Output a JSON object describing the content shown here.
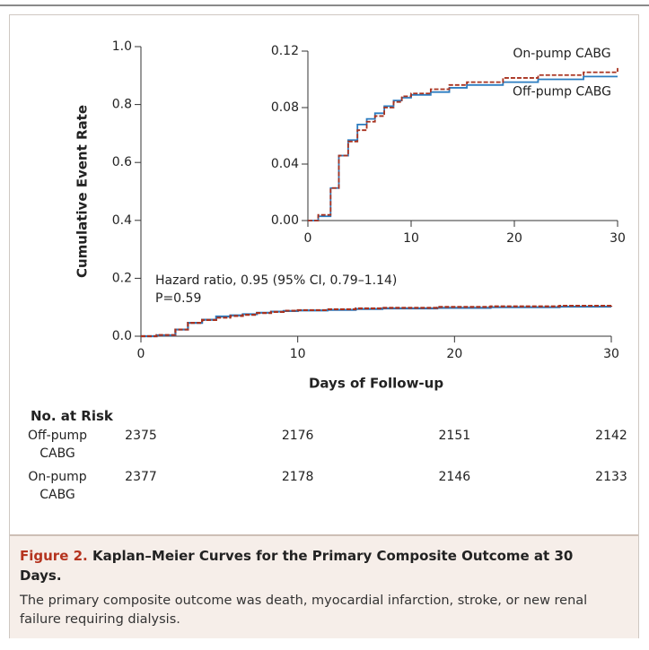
{
  "chart_data": [
    {
      "type": "step-line",
      "xlabel": "Days of Follow-up",
      "ylabel": "Cumulative Event Rate",
      "xlim": [
        0,
        30
      ],
      "ylim": [
        0,
        1
      ],
      "xticks": [
        0,
        10,
        20,
        30
      ],
      "yticks": [
        {
          "value": 0,
          "label": "0.0"
        },
        0.2,
        0.4,
        0.6,
        0.8,
        {
          "value": 1,
          "label": "1.0"
        }
      ],
      "annotations": [
        "Hazard ratio, 0.95 (95% CI, 0.79–1.14)",
        "P=0.59"
      ],
      "series": [
        {
          "name": "Off-pump CABG",
          "color": "#2b7cc0",
          "line_style": "solid",
          "x": [
            0,
            1,
            2.2,
            3,
            3.9,
            4.8,
            5.7,
            6.5,
            7.4,
            8.3,
            9.1,
            10,
            11.9,
            13.7,
            15.4,
            18.9,
            22.3,
            26.7,
            30
          ],
          "values": [
            0,
            0.003,
            0.023,
            0.046,
            0.057,
            0.068,
            0.072,
            0.076,
            0.081,
            0.085,
            0.087,
            0.089,
            0.091,
            0.094,
            0.096,
            0.098,
            0.1,
            0.102,
            0.102
          ]
        },
        {
          "name": "On-pump CABG",
          "color": "#a8321f",
          "line_style": "dashed",
          "x": [
            0,
            1,
            2.2,
            3,
            3.9,
            4.8,
            5.7,
            6.5,
            7.4,
            8.3,
            9.1,
            10,
            11.9,
            13.7,
            15.4,
            18.9,
            22.3,
            26.7,
            30
          ],
          "values": [
            0,
            0.004,
            0.023,
            0.046,
            0.056,
            0.064,
            0.07,
            0.074,
            0.08,
            0.084,
            0.088,
            0.09,
            0.093,
            0.096,
            0.098,
            0.101,
            0.103,
            0.105,
            0.108
          ]
        }
      ]
    },
    {
      "type": "step-line",
      "xlim": [
        0,
        30
      ],
      "ylim": [
        0,
        0.12
      ],
      "xticks": [
        0,
        10,
        20,
        30
      ],
      "yticks": [
        {
          "value": 0,
          "label": "0.00"
        },
        {
          "value": 0.04,
          "label": "0.04"
        },
        {
          "value": 0.08,
          "label": "0.08"
        },
        {
          "value": 0.12,
          "label": "0.12"
        }
      ],
      "series_labels": true,
      "series": [
        {
          "name": "Off-pump CABG",
          "color": "#2b7cc0",
          "line_style": "solid",
          "x": [
            0,
            1,
            2.2,
            3,
            3.9,
            4.8,
            5.7,
            6.5,
            7.4,
            8.3,
            9.1,
            10,
            11.9,
            13.7,
            15.4,
            18.9,
            22.3,
            26.7,
            30
          ],
          "values": [
            0,
            0.003,
            0.023,
            0.046,
            0.057,
            0.068,
            0.072,
            0.076,
            0.081,
            0.085,
            0.087,
            0.089,
            0.091,
            0.094,
            0.096,
            0.098,
            0.1,
            0.102,
            0.102
          ]
        },
        {
          "name": "On-pump CABG",
          "color": "#a8321f",
          "line_style": "dashed",
          "x": [
            0,
            1,
            2.2,
            3,
            3.9,
            4.8,
            5.7,
            6.5,
            7.4,
            8.3,
            9.1,
            10,
            11.9,
            13.7,
            15.4,
            18.9,
            22.3,
            26.7,
            30
          ],
          "values": [
            0,
            0.004,
            0.023,
            0.046,
            0.056,
            0.064,
            0.07,
            0.074,
            0.08,
            0.084,
            0.088,
            0.09,
            0.093,
            0.096,
            0.098,
            0.101,
            0.103,
            0.105,
            0.108
          ]
        }
      ]
    }
  ],
  "risk_table": {
    "title": "No. at Risk",
    "rows": [
      {
        "label": "Off-pump CABG",
        "values": [
          2375,
          2176,
          2151,
          2142
        ]
      },
      {
        "label": "On-pump CABG",
        "values": [
          2377,
          2178,
          2146,
          2133
        ]
      }
    ]
  },
  "caption": {
    "label": "Figure 2.",
    "title": "Kaplan–Meier Curves for the Primary Composite Outcome at 30 Days.",
    "text": "The primary composite outcome was death, myocardial infarction, stroke, or new renal failure requiring dialysis."
  }
}
